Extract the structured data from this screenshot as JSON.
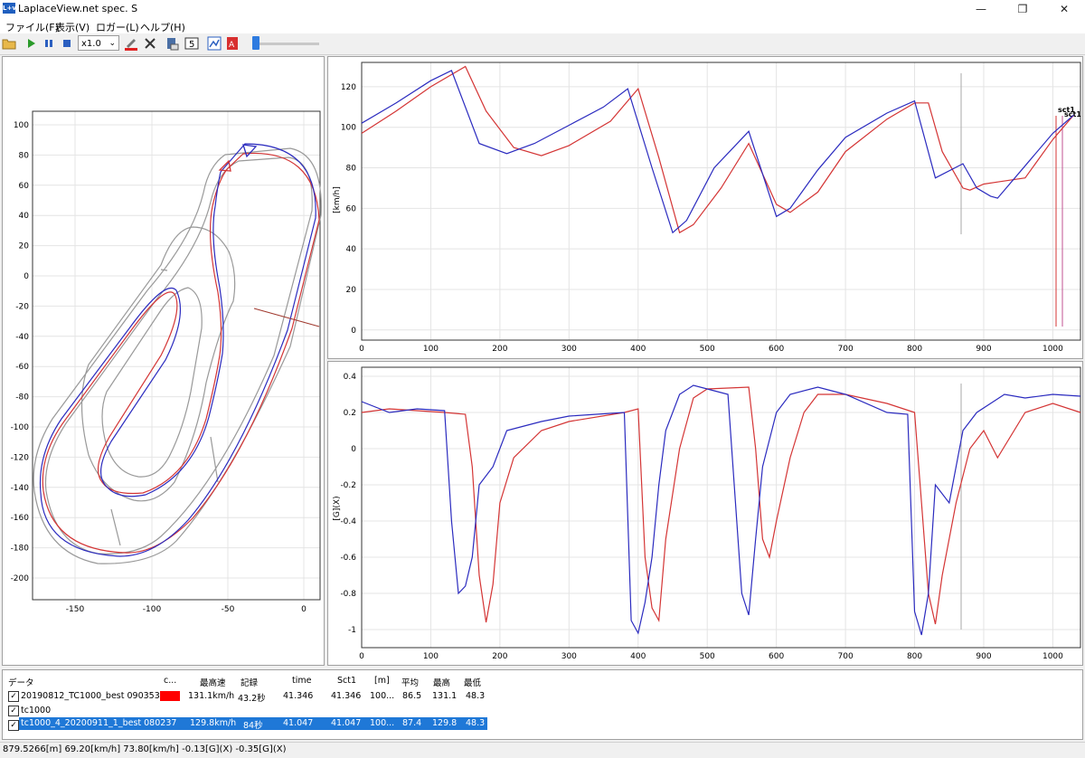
{
  "window": {
    "title": "LaplaceView.net spec. S",
    "icon_text": "L+v",
    "min": "—",
    "restore": "❐",
    "close": "✕"
  },
  "menu": [
    "ファイル(F)",
    "表示(V)",
    "ロガー(L)",
    "ヘルプ(H)"
  ],
  "toolbar": {
    "zoom_value": "x1.0",
    "playback_position": 0.02
  },
  "colors": {
    "series_a": "#d43535",
    "series_b": "#2b2bbf",
    "selected_row": "#1f78d7"
  },
  "map": {
    "x_ticks": [
      "-150",
      "-100",
      "-50",
      "0"
    ],
    "y_ticks": [
      "100",
      "80",
      "60",
      "40",
      "20",
      "0",
      "-20",
      "-40",
      "-60",
      "-80",
      "-100",
      "-120",
      "-140",
      "-160",
      "-180",
      "-200"
    ]
  },
  "speed_chart": {
    "ylabel": "[km/h]",
    "y_ticks": [
      "120",
      "100",
      "80",
      "60",
      "40",
      "20",
      "0"
    ],
    "x_ticks": [
      "0",
      "100",
      "200",
      "300",
      "400",
      "500",
      "600",
      "700",
      "800",
      "900",
      "1000"
    ],
    "marker_labels": [
      "sct1",
      "sct1"
    ]
  },
  "g_chart": {
    "ylabel": "[G](X)",
    "y_ticks": [
      "0.4",
      "0.2",
      "0",
      "-0.2",
      "-0.4",
      "-0.6",
      "-0.8",
      "-1"
    ],
    "x_ticks": [
      "0",
      "100",
      "200",
      "300",
      "400",
      "500",
      "600",
      "700",
      "800",
      "900",
      "1000"
    ]
  },
  "chart_data": [
    {
      "type": "line",
      "xlabel": "",
      "ylabel": "[km/h]",
      "xlim": [
        0,
        1040
      ],
      "ylim": [
        -5,
        132
      ],
      "grid": true,
      "series": [
        {
          "name": "20190812_TC1000_best 090353",
          "color": "#d43535",
          "x": [
            0,
            50,
            100,
            150,
            180,
            220,
            260,
            300,
            360,
            400,
            430,
            460,
            480,
            520,
            560,
            600,
            620,
            660,
            700,
            760,
            800,
            820,
            840,
            870,
            880,
            900,
            920,
            960,
            1000,
            1030
          ],
          "y": [
            97,
            108,
            120,
            130,
            108,
            90,
            86,
            91,
            103,
            119,
            85,
            48,
            52,
            70,
            92,
            62,
            58,
            68,
            88,
            104,
            112,
            112,
            88,
            70,
            69,
            72,
            73,
            75,
            94,
            106
          ]
        },
        {
          "name": "tc1000_4_20200911_1_best 080237",
          "color": "#2b2bbf",
          "x": [
            0,
            50,
            100,
            130,
            170,
            210,
            250,
            300,
            350,
            385,
            420,
            450,
            470,
            510,
            560,
            600,
            620,
            660,
            700,
            760,
            800,
            830,
            870,
            890,
            910,
            920,
            960,
            1000,
            1030
          ],
          "y": [
            102,
            112,
            123,
            128,
            92,
            87,
            92,
            101,
            110,
            119,
            80,
            48,
            54,
            80,
            98,
            56,
            60,
            79,
            95,
            107,
            113,
            75,
            82,
            70,
            66,
            65,
            81,
            97,
            106
          ]
        }
      ]
    },
    {
      "type": "line",
      "xlabel": "",
      "ylabel": "[G](X)",
      "xlim": [
        0,
        1040
      ],
      "ylim": [
        -1.1,
        0.45
      ],
      "grid": true,
      "series": [
        {
          "name": "20190812_TC1000_best 090353",
          "color": "#d43535",
          "x": [
            0,
            40,
            80,
            120,
            150,
            160,
            170,
            180,
            190,
            200,
            220,
            260,
            300,
            380,
            400,
            410,
            420,
            430,
            440,
            460,
            480,
            500,
            560,
            570,
            580,
            590,
            600,
            620,
            640,
            660,
            700,
            760,
            800,
            810,
            820,
            830,
            840,
            860,
            880,
            900,
            920,
            960,
            1000,
            1040
          ],
          "y": [
            0.2,
            0.22,
            0.21,
            0.2,
            0.19,
            -0.1,
            -0.7,
            -0.96,
            -0.75,
            -0.3,
            -0.05,
            0.1,
            0.15,
            0.2,
            0.22,
            -0.6,
            -0.88,
            -0.95,
            -0.5,
            0.0,
            0.28,
            0.33,
            0.34,
            0.0,
            -0.5,
            -0.6,
            -0.4,
            -0.05,
            0.2,
            0.3,
            0.3,
            0.25,
            0.2,
            -0.3,
            -0.8,
            -0.97,
            -0.7,
            -0.3,
            0.0,
            0.1,
            -0.05,
            0.2,
            0.25,
            0.2
          ]
        },
        {
          "name": "tc1000_4_20200911_1_best 080237",
          "color": "#2b2bbf",
          "x": [
            0,
            40,
            80,
            120,
            130,
            140,
            150,
            160,
            170,
            190,
            210,
            230,
            260,
            300,
            380,
            390,
            400,
            410,
            420,
            430,
            440,
            460,
            480,
            500,
            530,
            550,
            560,
            570,
            580,
            600,
            620,
            660,
            700,
            760,
            790,
            800,
            810,
            820,
            830,
            850,
            870,
            890,
            910,
            930,
            960,
            1000,
            1040
          ],
          "y": [
            0.26,
            0.2,
            0.22,
            0.21,
            -0.4,
            -0.8,
            -0.76,
            -0.6,
            -0.2,
            -0.1,
            0.1,
            0.12,
            0.15,
            0.18,
            0.2,
            -0.95,
            -1.02,
            -0.85,
            -0.6,
            -0.2,
            0.1,
            0.3,
            0.35,
            0.33,
            0.3,
            -0.8,
            -0.92,
            -0.5,
            -0.1,
            0.2,
            0.3,
            0.34,
            0.3,
            0.2,
            0.19,
            -0.9,
            -1.03,
            -0.8,
            -0.2,
            -0.3,
            0.1,
            0.2,
            0.25,
            0.3,
            0.28,
            0.3,
            0.29
          ]
        }
      ]
    }
  ],
  "table": {
    "headers": [
      "データ",
      "c...",
      "最高速",
      "記録",
      "time",
      "Sct1",
      "[m]",
      "平均",
      "最高",
      "最低"
    ],
    "rows": [
      {
        "name": "20190812_TC1000_best 090353",
        "top_speed": "131.1km/h",
        "record": "43.2秒",
        "time": "41.346",
        "sct1": "41.346",
        "m": "100...",
        "avg": "86.5",
        "max": "131.1",
        "min": "48.3",
        "checked": "✓",
        "color": "#ff0000"
      },
      {
        "name": "tc1000",
        "checked": "✓"
      },
      {
        "name": "tc1000_4_20200911_1_best 080237",
        "top_speed": "129.8km/h",
        "record": "84秒",
        "time": "41.047",
        "sct1": "41.047",
        "m": "100...",
        "avg": "87.4",
        "max": "129.8",
        "min": "48.3",
        "checked": "✓",
        "color": "#1f78d7"
      }
    ]
  },
  "status": "879.5266[m]  69.20[km/h] 73.80[km/h]  -0.13[G](X) -0.35[G](X)"
}
